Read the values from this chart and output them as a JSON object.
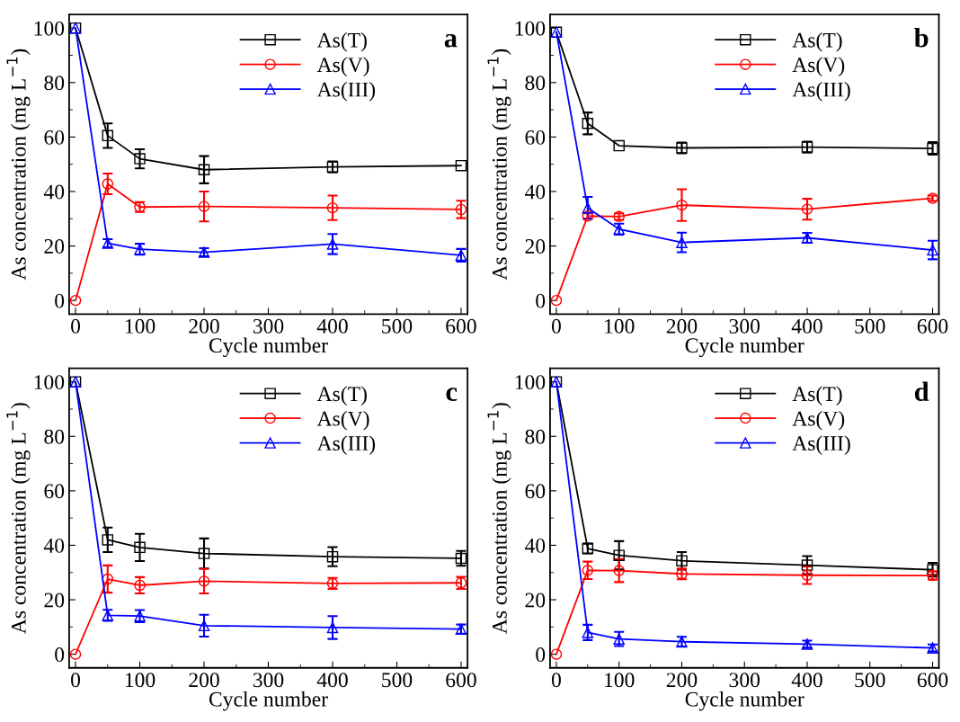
{
  "chart_data": [
    {
      "type": "line",
      "xlabel": "Cycle number",
      "ylabel": "As concentration (mg L$^{−1}$)",
      "annotations": [
        "a"
      ],
      "x": [
        0,
        50,
        100,
        200,
        400,
        600
      ],
      "xlim": [
        -10,
        610
      ],
      "ylim": [
        -5,
        105
      ],
      "xticks": [
        0,
        100,
        200,
        300,
        400,
        500,
        600
      ],
      "yticks": [
        0,
        20,
        40,
        60,
        80,
        100
      ],
      "legend": "top",
      "grid": false,
      "series": [
        {
          "name": "As(T)",
          "color": "#000000",
          "marker": "square",
          "values": [
            100,
            60.5,
            52,
            48,
            49,
            49.5
          ],
          "errors": [
            null,
            4.5,
            3.5,
            5,
            2,
            null
          ]
        },
        {
          "name": "As(V)",
          "color": "#ff0000",
          "marker": "circle",
          "values": [
            0,
            42.8,
            34.3,
            34.5,
            34,
            33.4
          ],
          "errors": [
            null,
            3.8,
            1.8,
            5.5,
            4.5,
            3.2
          ]
        },
        {
          "name": "As(III)",
          "color": "#0000ff",
          "marker": "triangle",
          "values": [
            100,
            21,
            18.8,
            17.7,
            20.7,
            16.6
          ],
          "errors": [
            null,
            1.5,
            2,
            1.5,
            3.7,
            2.3
          ]
        }
      ]
    },
    {
      "type": "line",
      "xlabel": "Cycle number",
      "ylabel": "As concentration (mg L$^{−1}$)",
      "annotations": [
        "b"
      ],
      "x": [
        0,
        50,
        100,
        200,
        400,
        600
      ],
      "xlim": [
        -10,
        610
      ],
      "ylim": [
        -5,
        105
      ],
      "xticks": [
        0,
        100,
        200,
        300,
        400,
        500,
        600
      ],
      "yticks": [
        0,
        20,
        40,
        60,
        80,
        100
      ],
      "legend": "top",
      "grid": false,
      "series": [
        {
          "name": "As(T)",
          "color": "#000000",
          "marker": "square",
          "values": [
            98.5,
            65,
            56.8,
            56,
            56.3,
            55.8
          ],
          "errors": [
            null,
            4,
            null,
            2,
            2,
            2.3
          ]
        },
        {
          "name": "As(V)",
          "color": "#ff0000",
          "marker": "circle",
          "values": [
            0,
            31,
            30.8,
            35,
            33.5,
            37.5
          ],
          "errors": [
            null,
            1,
            1.2,
            5.8,
            3.8,
            1
          ]
        },
        {
          "name": "As(III)",
          "color": "#0000ff",
          "marker": "triangle",
          "values": [
            98.5,
            34,
            26.2,
            21.3,
            23,
            18.5
          ],
          "errors": [
            null,
            4,
            2,
            3.6,
            1.8,
            3.4
          ]
        }
      ]
    },
    {
      "type": "line",
      "xlabel": "Cycle number",
      "ylabel": "As concentration (mg L$^{−1}$)",
      "annotations": [
        "c"
      ],
      "x": [
        0,
        50,
        100,
        200,
        400,
        600
      ],
      "xlim": [
        -10,
        610
      ],
      "ylim": [
        -5,
        105
      ],
      "xticks": [
        0,
        100,
        200,
        300,
        400,
        500,
        600
      ],
      "yticks": [
        0,
        20,
        40,
        60,
        80,
        100
      ],
      "legend": "top",
      "grid": false,
      "series": [
        {
          "name": "As(T)",
          "color": "#000000",
          "marker": "square",
          "values": [
            100,
            42,
            39.2,
            37,
            35.8,
            35.2
          ],
          "errors": [
            null,
            4.5,
            5,
            5.5,
            3.5,
            2.7
          ]
        },
        {
          "name": "As(V)",
          "color": "#ff0000",
          "marker": "circle",
          "values": [
            0,
            27.6,
            25.3,
            26.8,
            26,
            26.2
          ],
          "errors": [
            null,
            5,
            3,
            4.5,
            2,
            2.2
          ]
        },
        {
          "name": "As(III)",
          "color": "#0000ff",
          "marker": "triangle",
          "values": [
            100,
            14.3,
            14,
            10.5,
            9.8,
            9.2
          ],
          "errors": [
            null,
            2,
            2.2,
            4,
            4.2,
            1.7
          ]
        }
      ]
    },
    {
      "type": "line",
      "xlabel": "Cycle number",
      "ylabel": "As concentration (mg L$^{−1}$)",
      "annotations": [
        "d"
      ],
      "x": [
        0,
        50,
        100,
        200,
        400,
        600
      ],
      "xlim": [
        -10,
        610
      ],
      "ylim": [
        -5,
        105
      ],
      "xticks": [
        0,
        100,
        200,
        300,
        400,
        500,
        600
      ],
      "yticks": [
        0,
        20,
        40,
        60,
        80,
        100
      ],
      "legend": "top",
      "grid": false,
      "series": [
        {
          "name": "As(T)",
          "color": "#000000",
          "marker": "square",
          "values": [
            100,
            38.8,
            36.3,
            34.3,
            32.7,
            31
          ],
          "errors": [
            null,
            1.8,
            5.2,
            3.2,
            3.3,
            2.5
          ]
        },
        {
          "name": "As(V)",
          "color": "#ff0000",
          "marker": "circle",
          "values": [
            0,
            30.8,
            30.7,
            29.5,
            29,
            28.9
          ],
          "errors": [
            null,
            3.2,
            4.2,
            2,
            3.2,
            1.5
          ]
        },
        {
          "name": "As(III)",
          "color": "#0000ff",
          "marker": "triangle",
          "values": [
            100,
            8,
            5.6,
            4.6,
            3.7,
            2.3
          ],
          "errors": [
            null,
            2.8,
            2.6,
            1.8,
            1.3,
            1.3
          ]
        }
      ]
    }
  ]
}
